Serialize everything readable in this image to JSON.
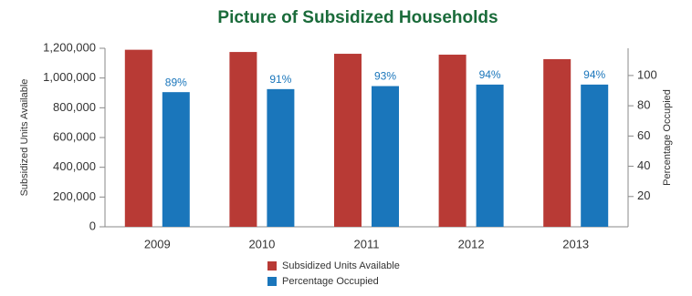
{
  "chart_data": {
    "type": "bar",
    "title": "Picture of Subsidized Households",
    "categories": [
      "2009",
      "2010",
      "2011",
      "2012",
      "2013"
    ],
    "series": [
      {
        "name": "Subsidized Units Available",
        "color": "#b83a35",
        "values": [
          1190000,
          1175000,
          1163000,
          1157000,
          1127000
        ]
      },
      {
        "name": "Percentage Occupied",
        "color": "#1a76bb",
        "axis": "y2",
        "values": [
          89,
          91,
          93,
          94,
          94
        ],
        "value_labels": [
          "89%",
          "91%",
          "93%",
          "94%",
          "94%"
        ]
      }
    ],
    "ylabel": "Subsidized Units Available",
    "y2label": "Percentage Occupied",
    "ylim": [
      0,
      1200000
    ],
    "yticks": [
      0,
      {
        "value": 200000,
        "label": "200,000"
      },
      {
        "value": 400000,
        "label": "400,000"
      },
      {
        "value": 600000,
        "label": "600,000"
      },
      {
        "value": 800000,
        "label": "800,000"
      },
      {
        "value": 1000000,
        "label": "1,000,000"
      },
      {
        "value": 1200000,
        "label": "1,200,000"
      }
    ],
    "y2lim": [
      0,
      118
    ],
    "y2ticks": [
      20,
      40,
      60,
      80,
      100
    ],
    "grid": false,
    "legend": "bottom"
  }
}
